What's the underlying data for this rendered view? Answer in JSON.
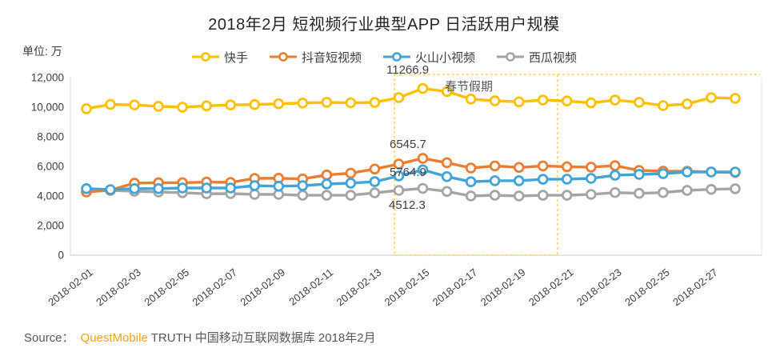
{
  "title": "2018年2月 短视频行业典型APP 日活跃用户规模",
  "unit_label": "单位: 万",
  "legend": [
    {
      "id": "kuaishou",
      "label": "快手",
      "color": "#FFC000"
    },
    {
      "id": "douyin",
      "label": "抖音短视频",
      "color": "#ED7D31"
    },
    {
      "id": "huoshan",
      "label": "火山小视频",
      "color": "#41A5D8"
    },
    {
      "id": "xigua",
      "label": "西瓜视频",
      "color": "#A5A5A5"
    }
  ],
  "chart_data": {
    "type": "line",
    "title": "2018年2月 短视频行业典型APP 日活跃用户规模",
    "ylabel": "单位: 万",
    "ylim": [
      0,
      12000
    ],
    "y_ticks": [
      0,
      2000,
      4000,
      6000,
      8000,
      10000,
      12000
    ],
    "y_tick_labels": [
      "0",
      "2,000",
      "4,000",
      "6,000",
      "8,000",
      "10,000",
      "12,000"
    ],
    "grid": false,
    "legend_position": "top",
    "x_label_step": 2,
    "x": [
      "2018-02-01",
      "2018-02-02",
      "2018-02-03",
      "2018-02-04",
      "2018-02-05",
      "2018-02-06",
      "2018-02-07",
      "2018-02-08",
      "2018-02-09",
      "2018-02-10",
      "2018-02-11",
      "2018-02-12",
      "2018-02-13",
      "2018-02-14",
      "2018-02-15",
      "2018-02-16",
      "2018-02-17",
      "2018-02-18",
      "2018-02-19",
      "2018-02-20",
      "2018-02-21",
      "2018-02-22",
      "2018-02-23",
      "2018-02-24",
      "2018-02-25",
      "2018-02-26",
      "2018-02-27",
      "2018-02-28"
    ],
    "series": [
      {
        "id": "kuaishou",
        "name": "快手",
        "color": "#FFC000",
        "values": [
          9900,
          10190,
          10150,
          10060,
          10000,
          10090,
          10150,
          10180,
          10230,
          10280,
          10330,
          10300,
          10320,
          10650,
          11266.9,
          11060,
          10550,
          10430,
          10360,
          10480,
          10420,
          10290,
          10480,
          10330,
          10110,
          10220,
          10650,
          10600
        ]
      },
      {
        "id": "douyin",
        "name": "抖音短视频",
        "color": "#ED7D31",
        "values": [
          4270,
          4400,
          4870,
          4900,
          4900,
          4940,
          4920,
          5190,
          5200,
          5150,
          5420,
          5540,
          5820,
          6160,
          6545.7,
          6250,
          5890,
          6030,
          5930,
          6030,
          5980,
          5950,
          6050,
          5730,
          5680,
          5670,
          5620,
          5590
        ]
      },
      {
        "id": "huoshan",
        "name": "火山小视频",
        "color": "#41A5D8",
        "values": [
          4500,
          4430,
          4500,
          4500,
          4540,
          4540,
          4540,
          4700,
          4660,
          4700,
          4810,
          4870,
          4970,
          5350,
          5764.9,
          5310,
          4960,
          5030,
          5030,
          5130,
          5140,
          5190,
          5400,
          5460,
          5510,
          5620,
          5620,
          5620
        ]
      },
      {
        "id": "xigua",
        "name": "西瓜视频",
        "color": "#A5A5A5",
        "values": [
          4300,
          4380,
          4320,
          4270,
          4220,
          4150,
          4160,
          4110,
          4110,
          4050,
          4050,
          4050,
          4210,
          4380,
          4512.3,
          4310,
          4000,
          4050,
          4000,
          4050,
          4050,
          4110,
          4230,
          4180,
          4230,
          4380,
          4450,
          4490
        ]
      }
    ]
  },
  "annotations": {
    "peak_kuaishou": "11266.9",
    "peak_douyin": "6545.7",
    "peak_huoshan": "5764.9",
    "peak_xigua": "4512.3",
    "holiday_label": "春节假期",
    "holiday_color": "#FFC000"
  },
  "source": {
    "prefix": "Source：",
    "brand": "QuestMobile",
    "brand_color": "#F7A11C",
    "rest": "TRUTH 中国移动互联网数据库 2018年2月"
  }
}
